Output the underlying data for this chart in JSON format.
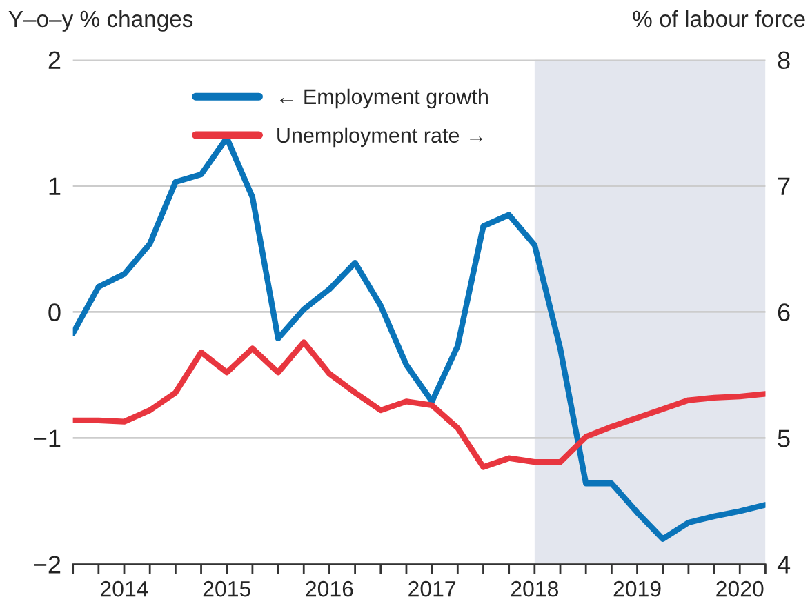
{
  "chart_data": {
    "type": "line",
    "ylabel": "Y–o–y % changes",
    "y2label": "% of labour force",
    "x": [
      2014.0,
      2014.25,
      2014.5,
      2014.75,
      2015.0,
      2015.25,
      2015.5,
      2015.75,
      2016.0,
      2016.25,
      2016.5,
      2016.75,
      2017.0,
      2017.25,
      2017.5,
      2017.75,
      2018.0,
      2018.25,
      2018.5,
      2018.75,
      2019.0,
      2019.25,
      2019.5,
      2019.75,
      2020.0,
      2020.25,
      2020.5,
      2020.75
    ],
    "series": [
      {
        "name": "← Employment growth",
        "color": "#0a74b9",
        "values": [
          -0.17,
          0.2,
          0.3,
          0.54,
          1.03,
          1.09,
          1.38,
          0.91,
          -0.21,
          0.02,
          0.18,
          0.39,
          0.05,
          -0.42,
          -0.71,
          -0.27,
          0.68,
          0.77,
          0.53,
          -0.29,
          -1.36,
          -1.36,
          -1.59,
          -1.8,
          -1.67,
          -1.62,
          -1.58,
          -1.53
        ]
      },
      {
        "name": "Unemployment rate →",
        "color": "#e8363f",
        "axis": "y2",
        "values": [
          5.14,
          5.14,
          5.13,
          5.22,
          5.36,
          5.68,
          5.52,
          5.71,
          5.52,
          5.76,
          5.51,
          5.36,
          5.22,
          5.29,
          5.26,
          5.08,
          4.77,
          4.84,
          4.81,
          4.81,
          5.01,
          5.09,
          5.16,
          5.23,
          5.3,
          5.32,
          5.33,
          5.35
        ]
      }
    ],
    "xlim": [
      2014.0,
      2020.75
    ],
    "xticks": [
      {
        "value": 2014.0,
        "label": null
      },
      {
        "value": 2014.25,
        "label": null
      },
      {
        "value": 2014.5,
        "label": "2014"
      },
      {
        "value": 2014.75,
        "label": null
      },
      {
        "value": 2015.0,
        "label": null
      },
      {
        "value": 2015.25,
        "label": null
      },
      {
        "value": 2015.5,
        "label": "2015"
      },
      {
        "value": 2015.75,
        "label": null
      },
      {
        "value": 2016.0,
        "label": null
      },
      {
        "value": 2016.25,
        "label": null
      },
      {
        "value": 2016.5,
        "label": "2016"
      },
      {
        "value": 2016.75,
        "label": null
      },
      {
        "value": 2017.0,
        "label": null
      },
      {
        "value": 2017.25,
        "label": null
      },
      {
        "value": 2017.5,
        "label": "2017"
      },
      {
        "value": 2017.75,
        "label": null
      },
      {
        "value": 2018.0,
        "label": null
      },
      {
        "value": 2018.25,
        "label": null
      },
      {
        "value": 2018.5,
        "label": "2018"
      },
      {
        "value": 2018.75,
        "label": null
      },
      {
        "value": 2019.0,
        "label": null
      },
      {
        "value": 2019.25,
        "label": null
      },
      {
        "value": 2019.5,
        "label": "2019"
      },
      {
        "value": 2019.75,
        "label": null
      },
      {
        "value": 2020.0,
        "label": null
      },
      {
        "value": 2020.25,
        "label": null
      },
      {
        "value": 2020.5,
        "label": "2020"
      },
      {
        "value": 2020.75,
        "label": null
      }
    ],
    "ylim": [
      -2,
      2
    ],
    "yticks": [
      {
        "value": -2,
        "label": "−2"
      },
      {
        "value": -1,
        "label": "−1"
      },
      0,
      1,
      2
    ],
    "y2lim": [
      4,
      8
    ],
    "y2ticks": [
      4,
      5,
      6,
      7,
      8
    ],
    "bands": [
      {
        "axis": "x",
        "from": 2018.5,
        "to": 2020.75,
        "color": "#e3e6ee"
      }
    ],
    "grid": "y",
    "legend": "top",
    "marker": "none",
    "line_style": "solid"
  }
}
